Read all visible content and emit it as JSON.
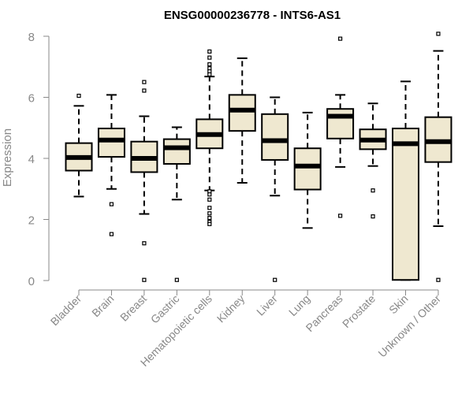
{
  "chart_data": {
    "type": "box",
    "title": "ENSG00000236778 - INTS6-AS1",
    "xlabel": "",
    "ylabel": "Expression",
    "ylim": [
      0,
      8
    ],
    "yticks": [
      "0",
      "2",
      "4",
      "6",
      "8"
    ],
    "box_fill": "#efe8d0",
    "box_stroke": "#000000",
    "categories": [
      "Bladder",
      "Brain",
      "Breast",
      "Gastric",
      "Hematopoietic cells",
      "Kidney",
      "Liver",
      "Lung",
      "Pancreas",
      "Prostate",
      "Skin",
      "Unknown / Other"
    ],
    "boxes": [
      {
        "category": "Bladder",
        "whisker_low": 2.75,
        "q1": 3.6,
        "median": 4.03,
        "q3": 4.5,
        "whisker_high": 5.72,
        "outliers": [
          6.05
        ]
      },
      {
        "category": "Brain",
        "whisker_low": 3.0,
        "q1": 4.05,
        "median": 4.6,
        "q3": 4.98,
        "whisker_high": 6.08,
        "outliers": [
          2.5,
          1.52
        ]
      },
      {
        "category": "Breast",
        "whisker_low": 2.18,
        "q1": 3.55,
        "median": 4.0,
        "q3": 4.55,
        "whisker_high": 5.38,
        "outliers": [
          6.5,
          6.22,
          1.22,
          0.02
        ]
      },
      {
        "category": "Gastric",
        "whisker_low": 2.65,
        "q1": 3.82,
        "median": 4.35,
        "q3": 4.63,
        "whisker_high": 5.02,
        "outliers": [
          0.02
        ]
      },
      {
        "category": "Hematopoietic cells",
        "whisker_low": 2.95,
        "q1": 4.33,
        "median": 4.78,
        "q3": 5.28,
        "whisker_high": 6.68,
        "outliers": [
          7.5,
          7.3,
          7.08,
          6.95,
          6.85,
          6.75,
          2.92,
          2.82,
          2.65,
          2.38,
          2.2,
          2.05,
          1.92,
          1.85
        ]
      },
      {
        "category": "Kidney",
        "whisker_low": 3.2,
        "q1": 4.9,
        "median": 5.58,
        "q3": 6.08,
        "whisker_high": 7.28,
        "outliers": []
      },
      {
        "category": "Liver",
        "whisker_low": 2.78,
        "q1": 3.95,
        "median": 4.58,
        "q3": 5.45,
        "whisker_high": 6.0,
        "outliers": [
          0.02
        ]
      },
      {
        "category": "Lung",
        "whisker_low": 1.72,
        "q1": 2.98,
        "median": 3.75,
        "q3": 4.33,
        "whisker_high": 5.5,
        "outliers": []
      },
      {
        "category": "Pancreas",
        "whisker_low": 3.72,
        "q1": 4.65,
        "median": 5.38,
        "q3": 5.62,
        "whisker_high": 6.08,
        "outliers": [
          7.92,
          2.12
        ]
      },
      {
        "category": "Prostate",
        "whisker_low": 3.75,
        "q1": 4.3,
        "median": 4.6,
        "q3": 4.95,
        "whisker_high": 5.8,
        "outliers": [
          2.95,
          2.1
        ]
      },
      {
        "category": "Skin",
        "whisker_low": 0.02,
        "q1": 0.02,
        "median": 4.48,
        "q3": 4.98,
        "whisker_high": 6.52,
        "outliers": []
      },
      {
        "category": "Unknown / Other",
        "whisker_low": 1.78,
        "q1": 3.88,
        "median": 4.55,
        "q3": 5.35,
        "whisker_high": 7.52,
        "outliers": [
          8.08,
          0.02
        ]
      }
    ]
  }
}
